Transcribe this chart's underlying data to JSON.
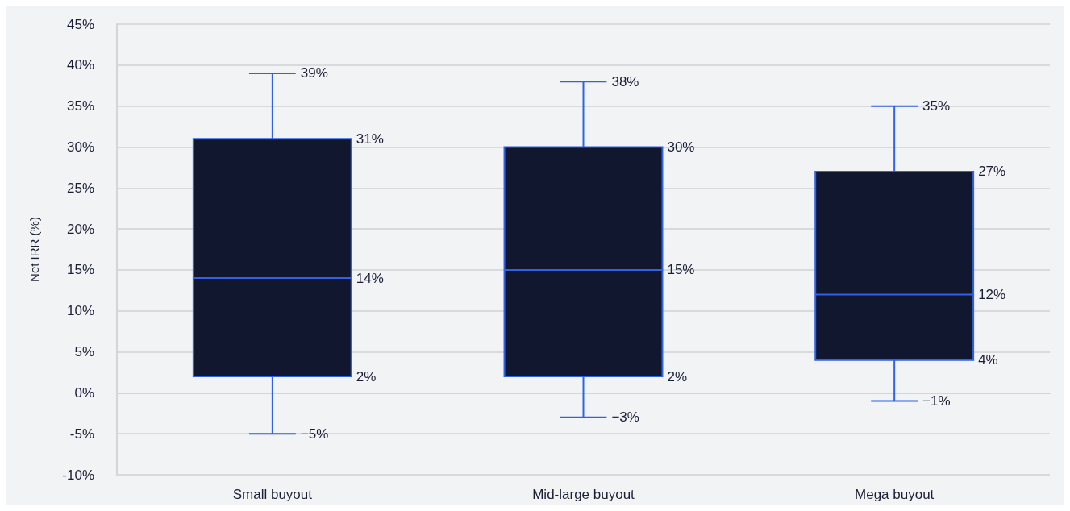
{
  "chart_data": {
    "type": "box",
    "ylabel": "Net IRR (%)",
    "categories": [
      "Small buyout",
      "Mid-large buyout",
      "Mega buyout"
    ],
    "series": [
      {
        "color": "#10172f",
        "boxes": [
          {
            "low": -5,
            "q1": 2,
            "median": 14,
            "q3": 31,
            "high": 39
          },
          {
            "low": -3,
            "q1": 2,
            "median": 15,
            "q3": 30,
            "high": 38
          },
          {
            "low": -1,
            "q1": 4,
            "median": 12,
            "q3": 27,
            "high": 35
          }
        ]
      }
    ],
    "ylim": [
      -10,
      45
    ],
    "yticks": [
      {
        "value": -10,
        "label": "-10%"
      },
      {
        "value": -5,
        "label": "-5%"
      },
      {
        "value": 0,
        "label": "0%"
      },
      {
        "value": 5,
        "label": "5%"
      },
      {
        "value": 10,
        "label": "10%"
      },
      {
        "value": 15,
        "label": "15%"
      },
      {
        "value": 20,
        "label": "20%"
      },
      {
        "value": 25,
        "label": "25%"
      },
      {
        "value": 30,
        "label": "30%"
      },
      {
        "value": 35,
        "label": "35%"
      },
      {
        "value": 40,
        "label": "40%"
      },
      {
        "value": 45,
        "label": "45%"
      }
    ],
    "annotations": [
      {
        "text": "39%",
        "x": "Small buyout",
        "y": 39
      },
      "31%",
      "14%",
      "2%",
      {
        "text": "−5%",
        "x": "Small buyout",
        "y": -5
      },
      {
        "text": "38%",
        "x": "Mid-large buyout",
        "y": 38
      },
      "30%",
      "15%",
      "2%",
      {
        "text": "−3%",
        "x": "Mid-large buyout",
        "y": -3
      },
      {
        "text": "35%",
        "x": "Mega buyout",
        "y": 35
      },
      "27%",
      "12%",
      "4%",
      {
        "text": "−1%",
        "x": "Mega buyout",
        "y": -1
      }
    ],
    "grid": "y"
  }
}
